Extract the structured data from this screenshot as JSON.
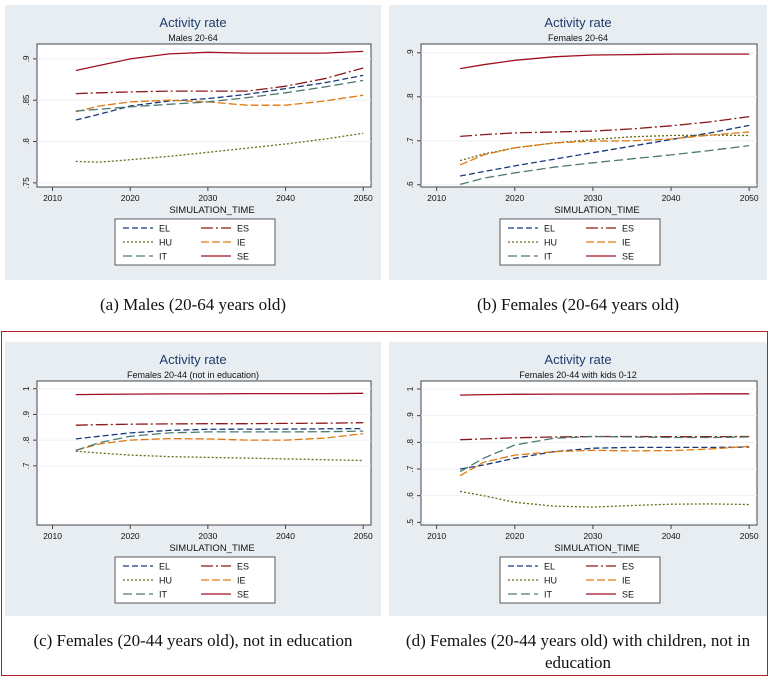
{
  "panels": [
    {
      "caption": "(a) Males (20-64 years old)",
      "chart_data": {
        "type": "line",
        "title": "Activity rate",
        "subtitle": "Males 20-64",
        "xlabel": "SIMULATION_TIME",
        "ylabel": "",
        "xlim": [
          2008,
          2051
        ],
        "ylim": [
          0.745,
          0.918
        ],
        "xticks": [
          2010,
          2020,
          2030,
          2040,
          2050
        ],
        "yticks": [
          0.75,
          0.8,
          0.85,
          0.9
        ],
        "ytick_labels": [
          ".75",
          ".8",
          ".85",
          ".9"
        ],
        "x": [
          2013,
          2016,
          2020,
          2025,
          2030,
          2035,
          2040,
          2045,
          2050
        ],
        "series": [
          {
            "name": "EL",
            "values": [
              0.826,
              0.833,
              0.843,
              0.849,
              0.852,
              0.857,
              0.864,
              0.871,
              0.88
            ]
          },
          {
            "name": "ES",
            "values": [
              0.858,
              0.859,
              0.86,
              0.861,
              0.861,
              0.861,
              0.867,
              0.876,
              0.889
            ]
          },
          {
            "name": "HU",
            "values": [
              0.776,
              0.775,
              0.778,
              0.782,
              0.787,
              0.792,
              0.797,
              0.803,
              0.81
            ]
          },
          {
            "name": "IE",
            "values": [
              0.836,
              0.843,
              0.848,
              0.85,
              0.848,
              0.844,
              0.844,
              0.849,
              0.856
            ]
          },
          {
            "name": "IT",
            "values": [
              0.837,
              0.839,
              0.842,
              0.845,
              0.848,
              0.853,
              0.859,
              0.866,
              0.874
            ]
          },
          {
            "name": "SE",
            "values": [
              0.886,
              0.892,
              0.9,
              0.906,
              0.908,
              0.907,
              0.907,
              0.907,
              0.909
            ]
          }
        ],
        "grid": true,
        "legend": "bottom"
      }
    },
    {
      "caption": "(b) Females (20-64 years old)",
      "chart_data": {
        "type": "line",
        "title": "Activity rate",
        "subtitle": "Females 20-64",
        "xlabel": "SIMULATION_TIME",
        "ylabel": "",
        "xlim": [
          2008,
          2051
        ],
        "ylim": [
          0.595,
          0.92
        ],
        "xticks": [
          2010,
          2020,
          2030,
          2040,
          2050
        ],
        "yticks": [
          0.6,
          0.7,
          0.8,
          0.9
        ],
        "ytick_labels": [
          ".6",
          ".7",
          ".8",
          ".9"
        ],
        "x": [
          2013,
          2016,
          2020,
          2025,
          2030,
          2035,
          2040,
          2045,
          2050
        ],
        "series": [
          {
            "name": "EL",
            "values": [
              0.62,
              0.63,
              0.643,
              0.658,
              0.673,
              0.688,
              0.703,
              0.718,
              0.735
            ]
          },
          {
            "name": "ES",
            "values": [
              0.71,
              0.714,
              0.718,
              0.72,
              0.722,
              0.727,
              0.734,
              0.743,
              0.755
            ]
          },
          {
            "name": "HU",
            "values": [
              0.655,
              0.67,
              0.684,
              0.695,
              0.703,
              0.709,
              0.712,
              0.713,
              0.712
            ]
          },
          {
            "name": "IE",
            "values": [
              0.645,
              0.668,
              0.684,
              0.695,
              0.699,
              0.7,
              0.704,
              0.713,
              0.72
            ]
          },
          {
            "name": "IT",
            "values": [
              0.601,
              0.615,
              0.627,
              0.64,
              0.65,
              0.659,
              0.668,
              0.678,
              0.689
            ]
          },
          {
            "name": "SE",
            "values": [
              0.864,
              0.873,
              0.883,
              0.891,
              0.895,
              0.896,
              0.897,
              0.897,
              0.897
            ]
          }
        ],
        "grid": true,
        "legend": "bottom"
      }
    },
    {
      "caption": "(c) Females (20-44 years old), not in education",
      "chart_data": {
        "type": "line",
        "title": "Activity rate",
        "subtitle": "Females 20-44 (not in education)",
        "xlabel": "SIMULATION_TIME",
        "ylabel": "",
        "xlim": [
          2008,
          2051
        ],
        "ylim": [
          0.47,
          1.03
        ],
        "xticks": [
          2010,
          2020,
          2030,
          2040,
          2050
        ],
        "yticks": [
          0.7,
          0.8,
          0.9,
          1.0
        ],
        "ytick_labels": [
          ".7",
          ".8",
          ".9",
          "1"
        ],
        "x": [
          2013,
          2016,
          2020,
          2025,
          2030,
          2035,
          2040,
          2045,
          2050
        ],
        "series": [
          {
            "name": "EL",
            "values": [
              0.805,
              0.815,
              0.828,
              0.838,
              0.842,
              0.843,
              0.843,
              0.844,
              0.845
            ]
          },
          {
            "name": "ES",
            "values": [
              0.858,
              0.86,
              0.862,
              0.863,
              0.864,
              0.864,
              0.865,
              0.866,
              0.868
            ]
          },
          {
            "name": "HU",
            "values": [
              0.757,
              0.75,
              0.742,
              0.736,
              0.733,
              0.73,
              0.727,
              0.724,
              0.721
            ]
          },
          {
            "name": "IE",
            "values": [
              0.76,
              0.785,
              0.8,
              0.806,
              0.805,
              0.8,
              0.8,
              0.808,
              0.825
            ]
          },
          {
            "name": "IT",
            "values": [
              0.76,
              0.79,
              0.815,
              0.828,
              0.832,
              0.832,
              0.832,
              0.833,
              0.835
            ]
          },
          {
            "name": "SE",
            "values": [
              0.977,
              0.978,
              0.979,
              0.98,
              0.98,
              0.981,
              0.981,
              0.981,
              0.982
            ]
          }
        ],
        "grid": true,
        "legend": "bottom"
      }
    },
    {
      "caption": "(d) Females (20-44 years old) with children, not in education",
      "chart_data": {
        "type": "line",
        "title": "Activity rate",
        "subtitle": "Females 20-44 with kids 0-12",
        "xlabel": "SIMULATION_TIME",
        "ylabel": "",
        "xlim": [
          2008,
          2051
        ],
        "ylim": [
          0.49,
          1.03
        ],
        "xticks": [
          2010,
          2020,
          2030,
          2040,
          2050
        ],
        "yticks": [
          0.5,
          0.6,
          0.7,
          0.8,
          0.9,
          1.0
        ],
        "ytick_labels": [
          ".5",
          ".6",
          ".7",
          ".8",
          ".9",
          "1"
        ],
        "x": [
          2013,
          2016,
          2020,
          2025,
          2030,
          2035,
          2040,
          2045,
          2050
        ],
        "series": [
          {
            "name": "EL",
            "values": [
              0.7,
              0.715,
              0.74,
              0.765,
              0.778,
              0.781,
              0.781,
              0.781,
              0.782
            ]
          },
          {
            "name": "ES",
            "values": [
              0.81,
              0.813,
              0.817,
              0.82,
              0.822,
              0.822,
              0.821,
              0.821,
              0.822
            ]
          },
          {
            "name": "HU",
            "values": [
              0.616,
              0.6,
              0.575,
              0.561,
              0.557,
              0.563,
              0.568,
              0.569,
              0.567
            ]
          },
          {
            "name": "IE",
            "values": [
              0.675,
              0.725,
              0.752,
              0.765,
              0.77,
              0.768,
              0.769,
              0.775,
              0.785
            ]
          },
          {
            "name": "IT",
            "values": [
              0.69,
              0.74,
              0.79,
              0.815,
              0.822,
              0.82,
              0.818,
              0.818,
              0.82
            ]
          },
          {
            "name": "SE",
            "values": [
              0.977,
              0.979,
              0.98,
              0.981,
              0.981,
              0.981,
              0.981,
              0.982,
              0.982
            ]
          }
        ],
        "grid": true,
        "legend": "bottom"
      }
    }
  ],
  "series_styles": {
    "EL": {
      "color": "#1a3a7a",
      "dash": "6 3"
    },
    "ES": {
      "color": "#8b1a1a",
      "dash": "12 3 2 3"
    },
    "HU": {
      "color": "#6b6a1a",
      "dash": "2 2"
    },
    "IE": {
      "color": "#e07a10",
      "dash": "8 3"
    },
    "IT": {
      "color": "#4a7a70",
      "dash": "9 4"
    },
    "SE": {
      "color": "#a01020",
      "dash": ""
    }
  },
  "panel_style": {
    "background": "#e8edf2",
    "plot_background": "#ffffff",
    "title_color": "#1f3b6e"
  }
}
